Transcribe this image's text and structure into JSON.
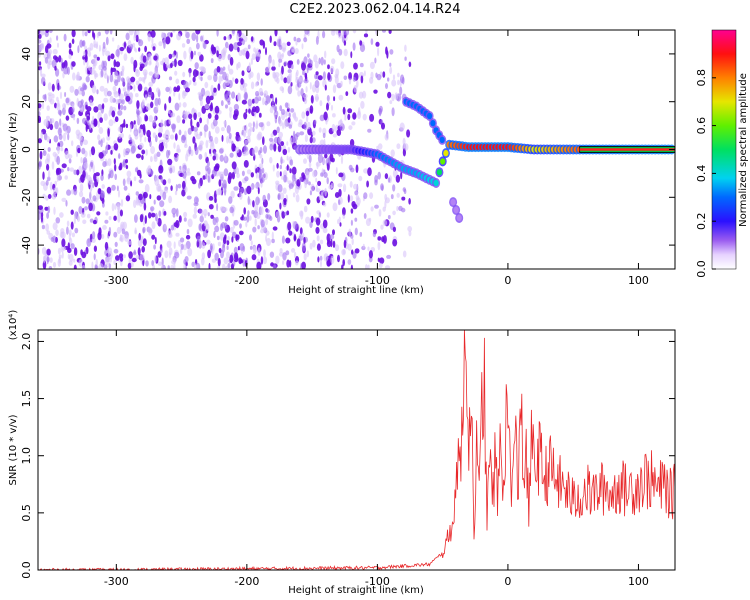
{
  "figure_title": "C2E2.2023.062.04.14.R24",
  "colors": {
    "snr_line": "#e8282a",
    "spectrogram_noise": "#7a1ee6",
    "frame": "#000000"
  },
  "chart_data": [
    {
      "name": "spectrogram",
      "type": "heatmap",
      "title": "C2E2.2023.062.04.14.R24",
      "xlabel": "Height of straight line (km)",
      "ylabel": "Frequency (Hz)",
      "xlim": [
        -360,
        128
      ],
      "ylim": [
        -50,
        50
      ],
      "xticks": [
        -300,
        -200,
        -100,
        0,
        100
      ],
      "yticks": [
        -40,
        -20,
        0,
        20,
        40
      ],
      "colorbar": {
        "label": "Normalized spectral amplitude",
        "range": [
          0,
          1
        ],
        "ticks": [
          0.0,
          0.2,
          0.4,
          0.6,
          0.8
        ],
        "colormap": "rainbow"
      },
      "features": [
        {
          "kind": "noise",
          "x": [
            -360,
            -75
          ],
          "y": [
            -50,
            50
          ],
          "amplitude": 0.1
        },
        {
          "kind": "track",
          "points": [
            [
              -160,
              0
            ],
            [
              -120,
              0
            ],
            [
              -100,
              -2
            ],
            [
              -80,
              -8
            ],
            [
              -70,
              -10
            ],
            [
              -55,
              -14
            ],
            [
              -50,
              -5
            ],
            [
              -45,
              2
            ],
            [
              -30,
              1
            ],
            [
              0,
              1
            ],
            [
              20,
              0
            ],
            [
              60,
              0
            ],
            [
              128,
              0
            ]
          ],
          "amplitude": [
            0.1,
            0.15,
            0.3,
            0.35,
            0.35,
            0.4,
            0.6,
            0.8,
            0.9,
            0.9,
            0.7,
            0.85,
            0.9
          ]
        },
        {
          "kind": "track",
          "points": [
            [
              -78,
              20
            ],
            [
              -70,
              18
            ],
            [
              -60,
              14
            ],
            [
              -55,
              8
            ],
            [
              -48,
              2
            ]
          ],
          "amplitude": 0.3
        },
        {
          "kind": "track",
          "points": [
            [
              -42,
              -22
            ],
            [
              -35,
              -32
            ]
          ],
          "amplitude": 0.1
        }
      ]
    },
    {
      "name": "snr",
      "type": "line",
      "xlabel": "Height of straight line (km)",
      "ylabel": "SNR (10 * v/v)",
      "y_exponent_label": "(x10⁴)",
      "xlim": [
        -360,
        128
      ],
      "ylim": [
        0,
        2.1
      ],
      "xticks": [
        -300,
        -200,
        -100,
        0,
        100
      ],
      "yticks": [
        0.0,
        0.5,
        1.0,
        1.5,
        2.0
      ],
      "series": [
        {
          "x": [
            -360,
            -300,
            -200,
            -100,
            -60,
            -50,
            -45,
            -40,
            -38,
            -36,
            -34,
            -32,
            -30,
            -28,
            -26,
            -24,
            -22,
            -20,
            -18,
            -16,
            -14,
            -12,
            -10,
            -8,
            -6,
            -4,
            -2,
            0,
            2,
            4,
            6,
            8,
            10,
            12,
            14,
            16,
            18,
            20,
            24,
            28,
            32,
            36,
            40,
            45,
            50,
            55,
            60,
            65,
            70,
            75,
            80,
            85,
            90,
            95,
            100,
            105,
            110,
            115,
            120,
            125,
            128
          ],
          "y": [
            0.0,
            0.0,
            0.01,
            0.02,
            0.05,
            0.15,
            0.3,
            0.6,
            1.3,
            0.8,
            1.6,
            2.1,
            1.2,
            1.5,
            0.4,
            1.0,
            0.6,
            1.4,
            1.7,
            0.3,
            1.2,
            0.5,
            1.0,
            0.6,
            1.1,
            0.7,
            1.2,
            1.4,
            0.8,
            0.9,
            1.1,
            0.6,
            1.7,
            0.8,
            1.0,
            0.5,
            1.1,
            0.9,
            1.0,
            0.8,
            0.9,
            0.8,
            0.75,
            0.7,
            0.6,
            0.65,
            0.7,
            0.65,
            0.7,
            0.72,
            0.65,
            0.75,
            0.7,
            0.72,
            0.75,
            0.8,
            0.78,
            0.7,
            0.75,
            0.65,
            0.7
          ]
        }
      ]
    }
  ]
}
